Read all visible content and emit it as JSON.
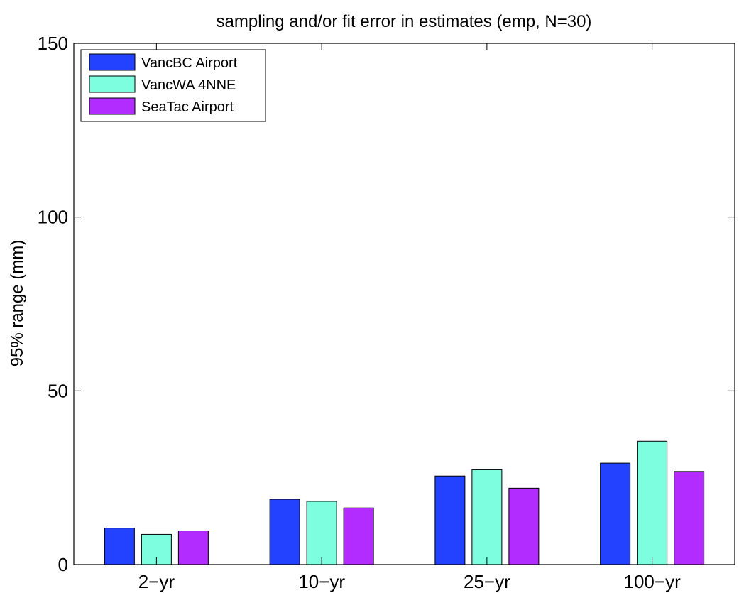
{
  "chart_data": {
    "type": "bar",
    "title": "sampling and/or fit error in estimates (emp, N=30)",
    "xlabel": "",
    "ylabel": "95% range (mm)",
    "categories": [
      "2−yr",
      "10−yr",
      "25−yr",
      "100−yr"
    ],
    "ylim": [
      0,
      150
    ],
    "yticks": [
      0,
      50,
      100,
      150
    ],
    "grid": false,
    "legend_position": "top-left",
    "series": [
      {
        "name": "VancBC Airport",
        "color": "#2342ff",
        "values": [
          10.5,
          18.8,
          25.5,
          29.2
        ]
      },
      {
        "name": "VancWA 4NNE",
        "color": "#7dfedf",
        "values": [
          8.7,
          18.2,
          27.3,
          35.5
        ]
      },
      {
        "name": "SeaTac Airport",
        "color": "#b32cff",
        "values": [
          9.7,
          16.3,
          22.0,
          26.8
        ]
      }
    ]
  }
}
